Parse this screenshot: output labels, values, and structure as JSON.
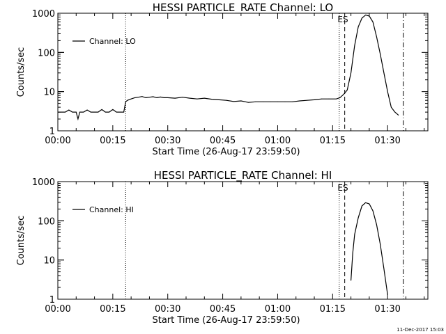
{
  "footer": {
    "timestamp": "11-Dec-2017 15:03"
  },
  "chart_data": [
    {
      "type": "line",
      "title": "HESSI PARTICLE_RATE Channel: LO",
      "xlabel": "Start Time (26-Aug-17 23:59:50)",
      "ylabel": "Counts/sec",
      "y_scale": "log",
      "ylim": [
        1,
        1000
      ],
      "y_ticks": [
        {
          "value": 1,
          "label": "1"
        },
        {
          "value": 10,
          "label": "10"
        },
        {
          "value": 100,
          "label": "100"
        },
        {
          "value": 1000,
          "label": "1000"
        }
      ],
      "x_unit": "minutes after start time",
      "xlim": [
        0,
        101
      ],
      "x_ticks": [
        {
          "value": 0,
          "label": "00:00"
        },
        {
          "value": 15,
          "label": "00:15"
        },
        {
          "value": 30,
          "label": "00:30"
        },
        {
          "value": 45,
          "label": "00:45"
        },
        {
          "value": 60,
          "label": "01:00"
        },
        {
          "value": 75,
          "label": "01:15"
        },
        {
          "value": 90,
          "label": "01:30"
        }
      ],
      "legend": {
        "position": "top-left"
      },
      "series": [
        {
          "name": "Channel: LO",
          "x": [
            0,
            1,
            2,
            3,
            4,
            5,
            5.5,
            6,
            7,
            8,
            9,
            10,
            11,
            12,
            13,
            14,
            15,
            16,
            17,
            18,
            18.5,
            19,
            20,
            21,
            22,
            23,
            24,
            25,
            26,
            27,
            28,
            29,
            30,
            32,
            34,
            36,
            38,
            40,
            42,
            44,
            46,
            48,
            50,
            52,
            54,
            56,
            58,
            60,
            62,
            64,
            66,
            68,
            70,
            72,
            74,
            76,
            77,
            78,
            79,
            80,
            81,
            82,
            83,
            84,
            85,
            86,
            87,
            88,
            89,
            90,
            91,
            92,
            93
          ],
          "values": [
            3,
            3,
            3,
            3.4,
            3,
            3,
            2,
            3,
            3,
            3.4,
            3,
            3,
            3,
            3.5,
            3,
            3,
            3.5,
            3,
            3,
            3,
            5.5,
            6,
            6.5,
            7,
            7.2,
            7.5,
            7,
            7.2,
            7.4,
            7,
            7.3,
            7,
            7,
            6.8,
            7.2,
            6.8,
            6.5,
            6.8,
            6.4,
            6.2,
            6.0,
            5.6,
            5.8,
            5.3,
            5.5,
            5.5,
            5.5,
            5.5,
            5.5,
            5.5,
            5.8,
            6.0,
            6.2,
            6.5,
            6.5,
            6.5,
            7.0,
            8.5,
            11,
            30,
            150,
            450,
            750,
            900,
            850,
            600,
            250,
            90,
            30,
            10,
            4,
            3,
            2.5
          ]
        }
      ],
      "vertical_lines": [
        {
          "x": 18.5,
          "style": "dotted"
        },
        {
          "x": 76.8,
          "style": "dotted"
        },
        {
          "x": 78.3,
          "style": "dashed"
        },
        {
          "x": 94.3,
          "style": "dash-dot"
        }
      ],
      "annotations": [
        {
          "text": "ES",
          "x": 77.8
        }
      ]
    },
    {
      "type": "line",
      "title": "HESSI PARTICLE_RATE Channel: HI",
      "xlabel": "Start Time (26-Aug-17 23:59:50)",
      "ylabel": "Counts/sec",
      "y_scale": "log",
      "ylim": [
        1,
        1000
      ],
      "y_ticks": [
        {
          "value": 1,
          "label": "1"
        },
        {
          "value": 10,
          "label": "10"
        },
        {
          "value": 100,
          "label": "100"
        },
        {
          "value": 1000,
          "label": "1000"
        }
      ],
      "x_unit": "minutes after start time",
      "xlim": [
        0,
        101
      ],
      "x_ticks": [
        {
          "value": 0,
          "label": "00:00"
        },
        {
          "value": 15,
          "label": "00:15"
        },
        {
          "value": 30,
          "label": "00:30"
        },
        {
          "value": 45,
          "label": "00:45"
        },
        {
          "value": 60,
          "label": "01:00"
        },
        {
          "value": 75,
          "label": "01:15"
        },
        {
          "value": 90,
          "label": "01:30"
        }
      ],
      "legend": {
        "position": "top-left"
      },
      "series": [
        {
          "name": "Channel: HI",
          "x": [
            80,
            80.5,
            81,
            82,
            83,
            84,
            85,
            86,
            87,
            88,
            89,
            90
          ],
          "values": [
            3,
            15,
            45,
            120,
            240,
            290,
            270,
            180,
            80,
            25,
            6,
            1.3
          ]
        }
      ],
      "vertical_lines": [
        {
          "x": 18.5,
          "style": "dotted"
        },
        {
          "x": 76.8,
          "style": "dotted"
        },
        {
          "x": 78.3,
          "style": "dashed"
        },
        {
          "x": 94.3,
          "style": "dash-dot"
        }
      ],
      "annotations": [
        {
          "text": "ES",
          "x": 77.8
        }
      ]
    }
  ]
}
